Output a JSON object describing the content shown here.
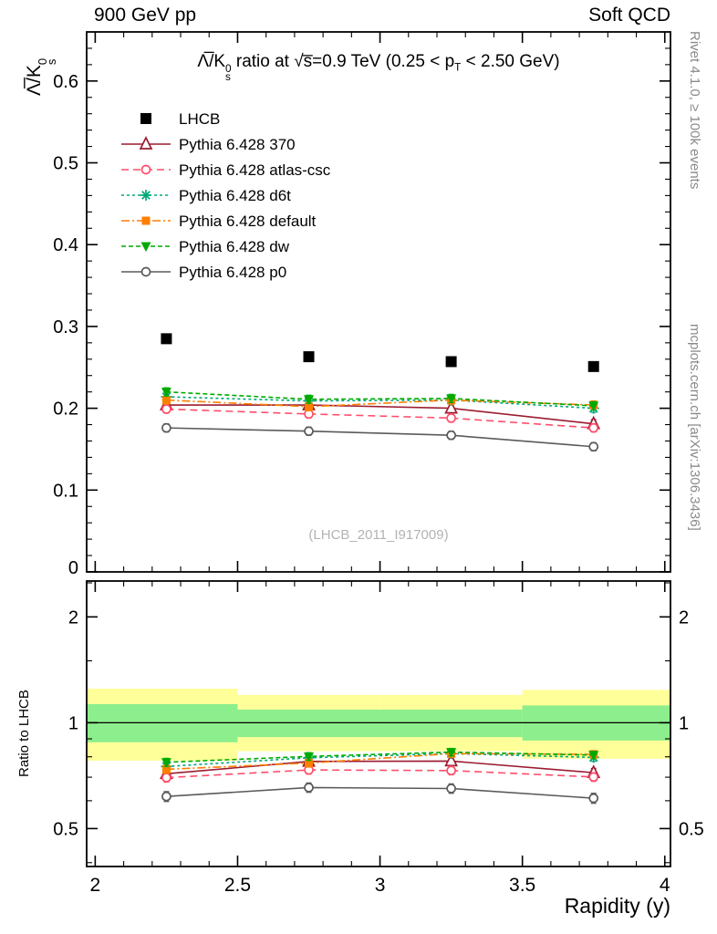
{
  "header": {
    "left": "900 GeV pp",
    "right": "Soft QCD"
  },
  "side_notes": {
    "top_right": "Rivet 4.1.0, ≥ 100k events",
    "bottom_right": "mcplots.cern.ch [arXiv:1306.3436]"
  },
  "watermark": "(LHCB_2011_I917009)",
  "title": {
    "p1": "Λ̅/K",
    "sup": "0",
    "sub": "s",
    "p2": " ratio at √s̅=0.9 TeV (0.25 < p",
    "psub": "T",
    "p3": " < 2.50 GeV)"
  },
  "ylabel": {
    "p1": "Λ̅/K",
    "sup": "0",
    "sub": "s"
  },
  "ratio_ylabel": "Ratio to LHCB",
  "xlabel": "Rapidity (y)",
  "chart_data": {
    "type": "line",
    "x": [
      2.25,
      2.75,
      3.25,
      3.75
    ],
    "x_range": [
      1.97,
      4.02
    ],
    "x_ticks": [
      2,
      2.5,
      3,
      3.5,
      4
    ],
    "main_y_range": [
      0,
      0.66
    ],
    "main_ticks": [
      0,
      0.1,
      0.2,
      0.3,
      0.4,
      0.5,
      0.6
    ],
    "ratio_y_range": [
      0.39,
      2.53
    ],
    "ratio_ticks": [
      0.5,
      1,
      2
    ],
    "ratio_minor_ticks": [
      0.4,
      0.6,
      0.7,
      0.8,
      0.9,
      1.5,
      2.5
    ],
    "colors": {
      "band_outer": "#ffff99",
      "band_inner": "#8cee8c"
    },
    "series": [
      {
        "id": "lhcb",
        "name": "LHCB",
        "color": "#000000",
        "marker": "square-filled",
        "line": "none",
        "msize": 6,
        "values": [
          0.285,
          0.263,
          0.257,
          0.251
        ]
      },
      {
        "id": "p370",
        "name": "Pythia 6.428 370",
        "color": "#9b1b30",
        "marker": "triangle-open",
        "line": "solid",
        "msize": 5.5,
        "err_main": 0.005,
        "err_ratio": 0.02,
        "values": [
          0.204,
          0.204,
          0.2,
          0.181
        ],
        "ratio": [
          0.716,
          0.776,
          0.778,
          0.721
        ]
      },
      {
        "id": "atlascsc",
        "name": "Pythia 6.428 atlas-csc",
        "color": "#ff4d6a",
        "marker": "circle-open",
        "line": "dashed",
        "msize": 5,
        "err_main": 0.005,
        "err_ratio": 0.02,
        "values": [
          0.199,
          0.193,
          0.188,
          0.176
        ],
        "ratio": [
          0.698,
          0.734,
          0.731,
          0.701
        ]
      },
      {
        "id": "d6t",
        "name": "Pythia 6.428 d6t",
        "color": "#00a878",
        "marker": "asterisk",
        "line": "densedash",
        "msize": 5.5,
        "err_main": 0.005,
        "err_ratio": 0.02,
        "values": [
          0.214,
          0.209,
          0.21,
          0.2
        ],
        "ratio": [
          0.751,
          0.795,
          0.817,
          0.797
        ]
      },
      {
        "id": "default",
        "name": "Pythia 6.428 default",
        "color": "#ff7f00",
        "marker": "square-filled",
        "line": "dashdot",
        "msize": 4.5,
        "err_main": 0.005,
        "err_ratio": 0.02,
        "values": [
          0.21,
          0.202,
          0.21,
          0.204
        ],
        "ratio": [
          0.737,
          0.768,
          0.817,
          0.813
        ]
      },
      {
        "id": "dw",
        "name": "Pythia 6.428 dw",
        "color": "#00aa00",
        "marker": "triangle-filled-down",
        "line": "mediumdash",
        "msize": 5,
        "err_main": 0.005,
        "err_ratio": 0.02,
        "values": [
          0.22,
          0.211,
          0.212,
          0.203
        ],
        "ratio": [
          0.772,
          0.802,
          0.825,
          0.809
        ]
      },
      {
        "id": "p0",
        "name": "Pythia 6.428 p0",
        "color": "#5a5a5a",
        "marker": "circle-open",
        "line": "solid",
        "msize": 5,
        "err_main": 0.005,
        "err_ratio": 0.02,
        "values": [
          0.176,
          0.172,
          0.167,
          0.153
        ],
        "ratio": [
          0.617,
          0.654,
          0.65,
          0.61
        ]
      }
    ],
    "bands": {
      "edges": [
        1.97,
        2.5,
        3.0,
        3.5,
        4.02
      ],
      "yellow": [
        [
          0.78,
          1.25
        ],
        [
          0.83,
          1.2
        ],
        [
          0.83,
          1.2
        ],
        [
          0.79,
          1.24
        ]
      ],
      "green": [
        [
          0.88,
          1.13
        ],
        [
          0.91,
          1.09
        ],
        [
          0.91,
          1.09
        ],
        [
          0.89,
          1.12
        ]
      ]
    }
  }
}
